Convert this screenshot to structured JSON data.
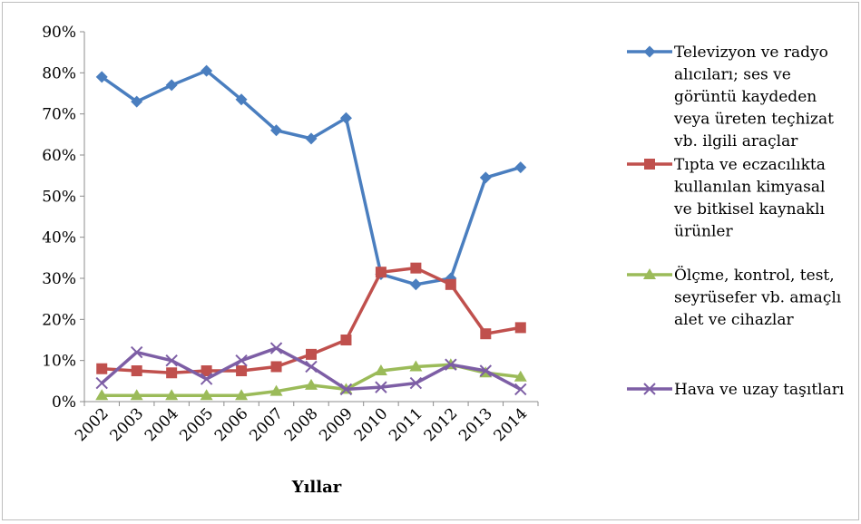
{
  "chart_data": {
    "type": "line",
    "categories": [
      "2002",
      "2003",
      "2004",
      "2005",
      "2006",
      "2007",
      "2008",
      "2009",
      "2010",
      "2011",
      "2012",
      "2013",
      "2014"
    ],
    "xlabel": "Yıllar",
    "ylabel": "",
    "ylim": [
      0,
      90
    ],
    "y_ticks": [
      "0%",
      "10%",
      "20%",
      "30%",
      "40%",
      "50%",
      "60%",
      "70%",
      "80%",
      "90%"
    ],
    "grid": false,
    "legend_position": "right",
    "series": [
      {
        "name": "Televizyon ve radyo alıcıları; ses ve görüntü kaydeden veya üreten teçhizat vb. ilgili araçlar",
        "name_lines": [
          "Televizyon ve radyo",
          "alıcıları; ses ve",
          "görüntü kaydeden",
          "veya üreten teçhizat",
          "vb. ilgili araçlar"
        ],
        "color": "#4a7ebf",
        "marker": "diamond",
        "values": [
          79,
          73,
          77,
          80.5,
          73.5,
          66,
          64,
          69,
          31,
          28.5,
          30,
          54.5,
          57
        ]
      },
      {
        "name": "Tıpta ve eczacılıkta kullanılan kimyasal ve bitkisel kaynaklı ürünler",
        "name_lines": [
          "Tıpta ve eczacılıkta",
          "kullanılan kimyasal",
          "ve bitkisel kaynaklı",
          "ürünler"
        ],
        "color": "#c0504d",
        "marker": "square",
        "values": [
          8,
          7.5,
          7,
          7.5,
          7.5,
          8.5,
          11.5,
          15,
          31.5,
          32.5,
          28.5,
          16.5,
          18
        ]
      },
      {
        "name": "Ölçme, kontrol, test, seyrüsefer vb. amaçlı alet ve cihazlar",
        "name_lines": [
          "Ölçme, kontrol, test,",
          "seyrüsefer vb. amaçlı",
          "alet ve cihazlar"
        ],
        "color": "#9bbb59",
        "marker": "triangle",
        "values": [
          1.5,
          1.5,
          1.5,
          1.5,
          1.5,
          2.5,
          4,
          3,
          7.5,
          8.5,
          9,
          7,
          6
        ]
      },
      {
        "name": "Hava ve uzay taşıtları",
        "name_lines": [
          "Hava ve uzay taşıtları"
        ],
        "color": "#7d5ea5",
        "marker": "x",
        "values": [
          4.5,
          12,
          10,
          5.5,
          10,
          13,
          8.5,
          3,
          3.5,
          4.5,
          9,
          7.5,
          3
        ]
      }
    ]
  }
}
